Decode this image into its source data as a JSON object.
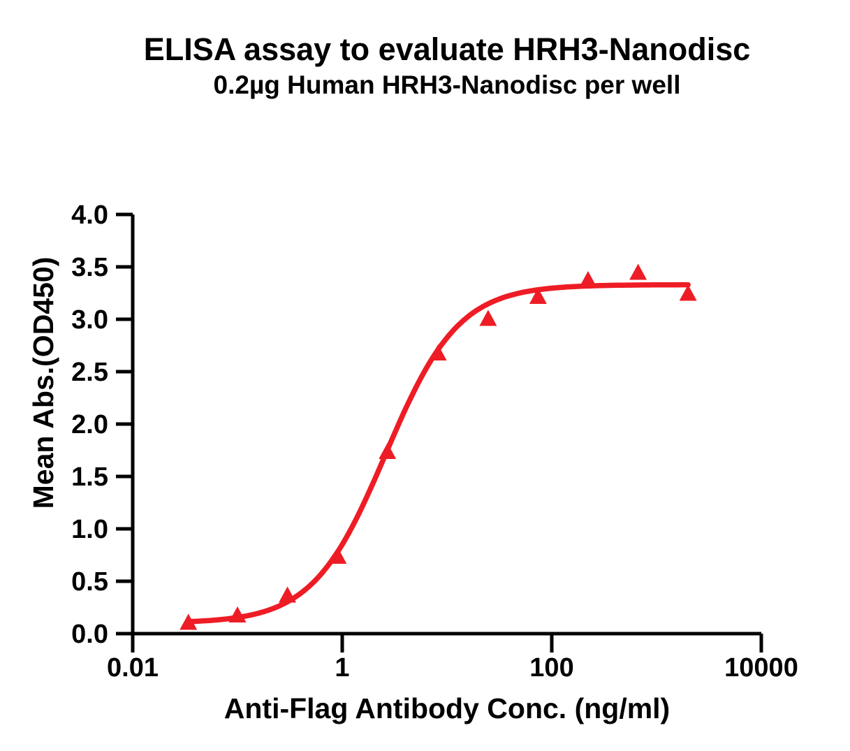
{
  "background_color": "#FFFFFF",
  "chart_data": {
    "type": "scatter",
    "title": "ELISA assay to evaluate HRH3-Nanodisc",
    "subtitle": "0.2µg Human HRH3-Nanodisc per well",
    "xlabel": "Anti-Flag Antibody Conc. (ng/ml)",
    "ylabel": "Mean Abs.(OD450)",
    "x_scale": "log10",
    "xlim": [
      0.01,
      10000
    ],
    "ylim": [
      0.0,
      4.0
    ],
    "grid": false,
    "legend_position": "none",
    "axis_color": "#000000",
    "x_ticks": {
      "values": [
        0.01,
        1,
        100,
        10000
      ],
      "labels": [
        "0.01",
        "1",
        "100",
        "10000"
      ]
    },
    "y_ticks": {
      "values": [
        0.0,
        0.5,
        1.0,
        1.5,
        2.0,
        2.5,
        3.0,
        3.5,
        4.0
      ],
      "labels": [
        "0.0",
        "0.5",
        "1.0",
        "1.5",
        "2.0",
        "2.5",
        "3.0",
        "3.5",
        "4.0"
      ]
    },
    "series": [
      {
        "marker": "triangle-up",
        "color": "#EE1C25",
        "points": [
          {
            "x": 0.034,
            "y": 0.1
          },
          {
            "x": 0.1,
            "y": 0.17
          },
          {
            "x": 0.3,
            "y": 0.36
          },
          {
            "x": 0.91,
            "y": 0.73
          },
          {
            "x": 2.7,
            "y": 1.73
          },
          {
            "x": 8.2,
            "y": 2.67
          },
          {
            "x": 24.7,
            "y": 3.0
          },
          {
            "x": 74,
            "y": 3.21
          },
          {
            "x": 222,
            "y": 3.37
          },
          {
            "x": 667,
            "y": 3.44
          },
          {
            "x": 2000,
            "y": 3.24
          }
        ]
      }
    ],
    "fit_curve": {
      "model": "4PL",
      "bottom": 0.1,
      "top": 3.33,
      "ec50_ng_ml": 2.6,
      "hillslope": 1.25,
      "color": "#EE1C25",
      "x_range": [
        0.034,
        2000
      ]
    }
  }
}
